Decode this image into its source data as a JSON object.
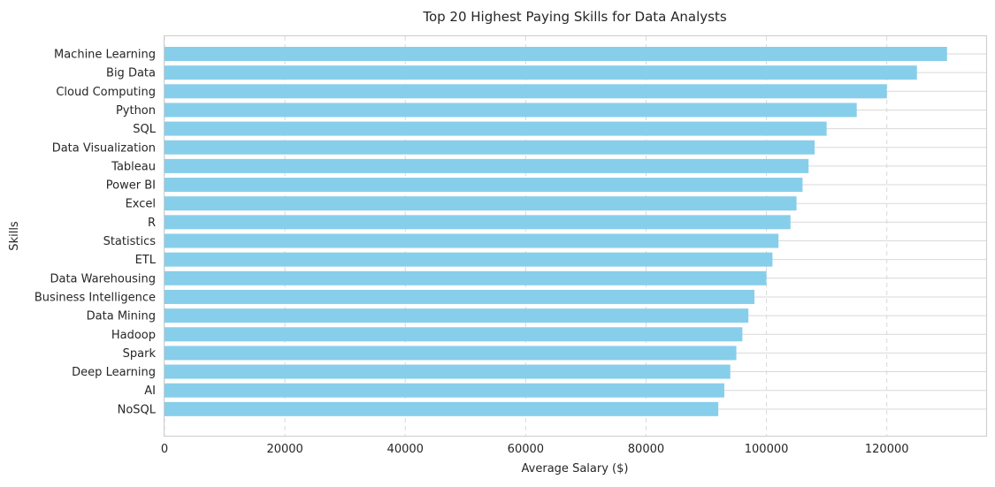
{
  "chart_data": {
    "type": "bar",
    "orientation": "horizontal",
    "title": "Top 20 Highest Paying Skills for Data Analysts",
    "xlabel": "Average Salary ($)",
    "ylabel": "Skills",
    "xlim": [
      0,
      136500
    ],
    "xticks": [
      0,
      20000,
      40000,
      60000,
      80000,
      100000,
      120000
    ],
    "xtick_labels": [
      "0",
      "20000",
      "40000",
      "60000",
      "80000",
      "100000",
      "120000"
    ],
    "grid": "x dashed, y solid",
    "bar_color": "#87ceeb",
    "categories": [
      "Machine Learning",
      "Big Data",
      "Cloud Computing",
      "Python",
      "SQL",
      "Data Visualization",
      "Tableau",
      "Power BI",
      "Excel",
      "R",
      "Statistics",
      "ETL",
      "Data Warehousing",
      "Business Intelligence",
      "Data Mining",
      "Hadoop",
      "Spark",
      "Deep Learning",
      "AI",
      "NoSQL"
    ],
    "values": [
      130000,
      125000,
      120000,
      115000,
      110000,
      108000,
      107000,
      106000,
      105000,
      104000,
      102000,
      101000,
      100000,
      98000,
      97000,
      96000,
      95000,
      94000,
      93000,
      92000
    ]
  }
}
